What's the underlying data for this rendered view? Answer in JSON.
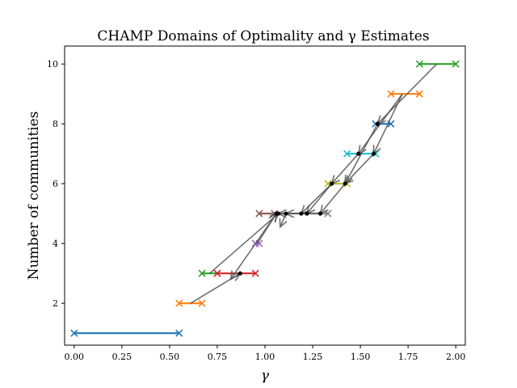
{
  "chart_data": {
    "type": "scatter",
    "title": "CHAMP Domains of Optimality and γ Estimates",
    "xlabel": "γ",
    "ylabel": "Number of communities",
    "xlim": [
      -0.05,
      2.05
    ],
    "ylim": [
      0.6,
      10.6
    ],
    "xticks": [
      {
        "value": 0.0,
        "label": "0.00"
      },
      {
        "value": 0.25,
        "label": "0.25"
      },
      {
        "value": 0.5,
        "label": "0.50"
      },
      {
        "value": 0.75,
        "label": "0.75"
      },
      {
        "value": 1.0,
        "label": "1.00"
      },
      {
        "value": 1.25,
        "label": "1.25"
      },
      {
        "value": 1.5,
        "label": "1.50"
      },
      {
        "value": 1.75,
        "label": "1.75"
      },
      {
        "value": 2.0,
        "label": "2.00"
      }
    ],
    "yticks": [
      {
        "value": 2,
        "label": "2"
      },
      {
        "value": 4,
        "label": "4"
      },
      {
        "value": 6,
        "label": "6"
      },
      {
        "value": 8,
        "label": "8"
      },
      {
        "value": 10,
        "label": "10"
      }
    ],
    "grid": false,
    "domains": [
      {
        "communities": 1,
        "gamma_start": 0.0,
        "gamma_end": 0.55,
        "color": "#1f77b4"
      },
      {
        "communities": 2,
        "gamma_start": 0.55,
        "gamma_end": 0.67,
        "color": "#ff7f0e"
      },
      {
        "communities": 3,
        "gamma_start": 0.67,
        "gamma_end": 0.75,
        "color": "#2ca02c"
      },
      {
        "communities": 3,
        "gamma_start": 0.75,
        "gamma_end": 0.95,
        "color": "#d62728"
      },
      {
        "communities": 4,
        "gamma_start": 0.95,
        "gamma_end": 0.97,
        "color": "#9467bd"
      },
      {
        "communities": 5,
        "gamma_start": 0.97,
        "gamma_end": 1.05,
        "color": "#8c564b"
      },
      {
        "communities": 5,
        "gamma_start": 1.05,
        "gamma_end": 1.33,
        "color": "#7f7f7f"
      },
      {
        "communities": 6,
        "gamma_start": 1.33,
        "gamma_end": 1.43,
        "color": "#bcbd22"
      },
      {
        "communities": 7,
        "gamma_start": 1.43,
        "gamma_end": 1.58,
        "color": "#17becf"
      },
      {
        "communities": 8,
        "gamma_start": 1.58,
        "gamma_end": 1.66,
        "color": "#1f77b4"
      },
      {
        "communities": 9,
        "gamma_start": 1.66,
        "gamma_end": 1.81,
        "color": "#ff7f0e"
      },
      {
        "communities": 10,
        "gamma_start": 1.81,
        "gamma_end": 2.0,
        "color": "#2ca02c"
      }
    ],
    "gamma_estimates": [
      {
        "communities": 3,
        "gamma": 0.87
      },
      {
        "communities": 5,
        "gamma": 1.06
      },
      {
        "communities": 5,
        "gamma": 1.07
      },
      {
        "communities": 5,
        "gamma": 1.11
      },
      {
        "communities": 5,
        "gamma": 1.19
      },
      {
        "communities": 5,
        "gamma": 1.22
      },
      {
        "communities": 5,
        "gamma": 1.29
      },
      {
        "communities": 6,
        "gamma": 1.35
      },
      {
        "communities": 6,
        "gamma": 1.42
      },
      {
        "communities": 7,
        "gamma": 1.49
      },
      {
        "communities": 7,
        "gamma": 1.57
      },
      {
        "communities": 8,
        "gamma": 1.59
      }
    ],
    "arrows": [
      {
        "from": [
          1.9,
          10.0
        ],
        "to": [
          1.59,
          8.0
        ]
      },
      {
        "from": [
          1.72,
          9.0
        ],
        "to": [
          1.49,
          7.0
        ]
      },
      {
        "from": [
          1.72,
          9.0
        ],
        "to": [
          1.57,
          7.0
        ]
      },
      {
        "from": [
          1.59,
          8.0
        ],
        "to": [
          1.42,
          6.0
        ]
      },
      {
        "from": [
          1.57,
          7.0
        ],
        "to": [
          1.42,
          6.0
        ]
      },
      {
        "from": [
          1.49,
          7.0
        ],
        "to": [
          1.35,
          6.0
        ]
      },
      {
        "from": [
          1.42,
          6.0
        ],
        "to": [
          1.29,
          5.0
        ]
      },
      {
        "from": [
          1.35,
          6.0
        ],
        "to": [
          1.22,
          5.0
        ]
      },
      {
        "from": [
          1.35,
          6.0
        ],
        "to": [
          1.19,
          5.0
        ]
      },
      {
        "from": [
          1.29,
          5.0
        ],
        "to": [
          1.11,
          5.0
        ]
      },
      {
        "from": [
          1.19,
          5.0
        ],
        "to": [
          1.07,
          5.0
        ]
      },
      {
        "from": [
          0.96,
          4.0
        ],
        "to": [
          1.06,
          5.0
        ]
      },
      {
        "from": [
          0.71,
          3.0
        ],
        "to": [
          1.07,
          5.0
        ]
      },
      {
        "from": [
          0.61,
          2.0
        ],
        "to": [
          0.87,
          3.0
        ]
      },
      {
        "from": [
          1.06,
          5.0
        ],
        "to": [
          0.82,
          2.8
        ]
      },
      {
        "from": [
          1.11,
          5.0
        ],
        "to": [
          1.08,
          4.55
        ]
      }
    ],
    "colors": {
      "arrow": "#555555",
      "estimate_point": "#000000",
      "axes": "#000000"
    }
  }
}
